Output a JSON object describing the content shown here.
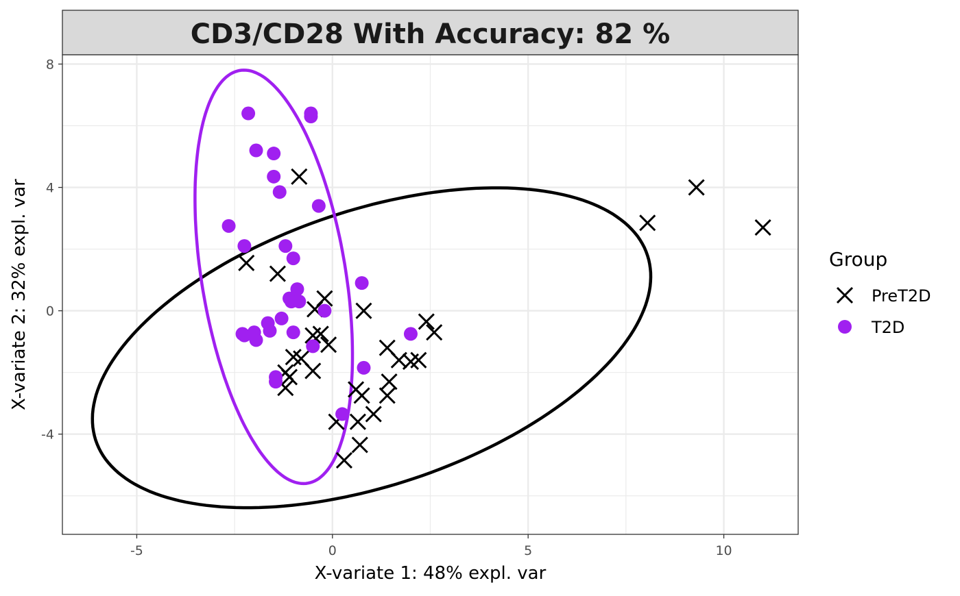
{
  "chart_data": {
    "type": "scatter",
    "title": "CD3/CD28 With Accuracy: 82 %",
    "xlabel": "X-variate 1: 48% expl. var",
    "ylabel": "X-variate 2: 32% expl. var",
    "xlim": [
      -6.9,
      11.9
    ],
    "ylim": [
      -7.25,
      8.3
    ],
    "xticks": [
      -5,
      0,
      5,
      10
    ],
    "yticks": [
      -4,
      0,
      4,
      8
    ],
    "grid": true,
    "legend": {
      "title": "Group",
      "position": "right",
      "entries": [
        {
          "label": "PreT2D",
          "marker": "cross",
          "color": "#000000"
        },
        {
          "label": "T2D",
          "marker": "circle",
          "color": "#A020F0"
        }
      ]
    },
    "series": [
      {
        "name": "PreT2D",
        "marker": "cross",
        "color": "#000000",
        "points": [
          [
            -0.85,
            4.35
          ],
          [
            -2.2,
            1.55
          ],
          [
            -1.4,
            1.2
          ],
          [
            -0.2,
            0.4
          ],
          [
            0.8,
            0.0
          ],
          [
            -0.45,
            0.05
          ],
          [
            -0.5,
            -0.8
          ],
          [
            -0.3,
            -0.75
          ],
          [
            -0.1,
            -1.1
          ],
          [
            -1.0,
            -1.5
          ],
          [
            -0.8,
            -1.55
          ],
          [
            -1.2,
            -2.0
          ],
          [
            -1.1,
            -2.15
          ],
          [
            -0.5,
            -1.95
          ],
          [
            -1.2,
            -2.5
          ],
          [
            1.4,
            -1.2
          ],
          [
            1.7,
            -1.6
          ],
          [
            2.0,
            -1.65
          ],
          [
            2.2,
            -1.6
          ],
          [
            2.4,
            -0.35
          ],
          [
            2.6,
            -0.7
          ],
          [
            1.45,
            -2.3
          ],
          [
            1.4,
            -2.75
          ],
          [
            0.6,
            -2.55
          ],
          [
            0.75,
            -2.75
          ],
          [
            1.05,
            -3.35
          ],
          [
            0.1,
            -3.6
          ],
          [
            0.65,
            -3.6
          ],
          [
            0.7,
            -4.35
          ],
          [
            0.3,
            -4.85
          ],
          [
            8.05,
            2.85
          ],
          [
            9.3,
            4.0
          ],
          [
            11.0,
            2.7
          ]
        ]
      },
      {
        "name": "T2D",
        "marker": "circle",
        "color": "#A020F0",
        "points": [
          [
            -2.15,
            6.4
          ],
          [
            -0.55,
            6.4
          ],
          [
            -0.55,
            6.3
          ],
          [
            -1.95,
            5.2
          ],
          [
            -1.5,
            5.1
          ],
          [
            -1.5,
            4.35
          ],
          [
            -1.35,
            3.85
          ],
          [
            -0.35,
            3.4
          ],
          [
            -2.65,
            2.75
          ],
          [
            -2.25,
            2.1
          ],
          [
            -1.2,
            2.1
          ],
          [
            -1.0,
            1.7
          ],
          [
            0.75,
            0.9
          ],
          [
            -0.9,
            0.7
          ],
          [
            -1.1,
            0.4
          ],
          [
            -1.05,
            0.3
          ],
          [
            -0.85,
            0.3
          ],
          [
            -0.2,
            0.0
          ],
          [
            -1.3,
            -0.25
          ],
          [
            -1.65,
            -0.4
          ],
          [
            -1.6,
            -0.65
          ],
          [
            -2.0,
            -0.7
          ],
          [
            -2.3,
            -0.75
          ],
          [
            -2.25,
            -0.8
          ],
          [
            -1.0,
            -0.7
          ],
          [
            -1.95,
            -0.95
          ],
          [
            2.0,
            -0.75
          ],
          [
            -0.5,
            -1.15
          ],
          [
            0.8,
            -1.85
          ],
          [
            -1.45,
            -2.15
          ],
          [
            -1.45,
            -2.3
          ],
          [
            0.25,
            -3.35
          ]
        ]
      }
    ],
    "ellipses": [
      {
        "group": "PreT2D",
        "color": "#000000",
        "center": [
          1.0,
          -1.2
        ],
        "semi_major": 7.7,
        "semi_minor": 4.3,
        "angle_deg": 27
      },
      {
        "group": "T2D",
        "color": "#A020F0",
        "center": [
          -1.5,
          1.1
        ],
        "semi_major": 6.75,
        "semi_minor": 1.85,
        "angle_deg": 97
      }
    ]
  }
}
